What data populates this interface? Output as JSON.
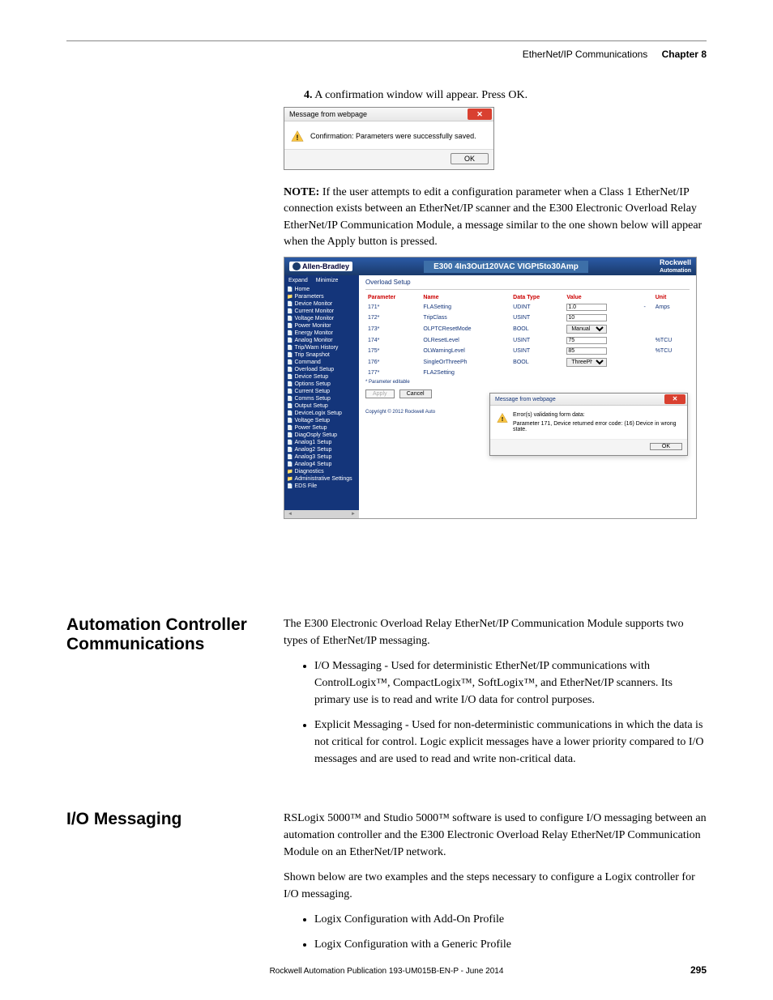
{
  "header": {
    "breadcrumb": "EtherNet/IP Communications",
    "chapter": "Chapter 8"
  },
  "step4": {
    "num": "4.",
    "text": "A confirmation window will appear. Press OK."
  },
  "dialog1": {
    "title": "Message from webpage",
    "message": "Confirmation: Parameters were successfully saved.",
    "ok": "OK"
  },
  "note": {
    "label": "NOTE:",
    "text": " If the user attempts to edit a configuration parameter when a Class 1 EtherNet/IP connection exists between an EtherNet/IP scanner and the E300 Electronic Overload Relay EtherNet/IP Communication Module, a message similar to the one shown below will appear when the Apply button is pressed."
  },
  "app": {
    "brand": "Allen-Bradley",
    "device": "E300 4In3Out120VAC VIGPt5to30Amp",
    "ra1": "Rockwell",
    "ra2": "Automation",
    "sidebar_top": {
      "expand": "Expand",
      "minimize": "Minimize"
    },
    "sidebar": [
      {
        "t": "Home",
        "cls": "page"
      },
      {
        "t": "Parameters",
        "cls": "folder"
      },
      {
        "t": "Device Monitor",
        "cls": "page"
      },
      {
        "t": "Current Monitor",
        "cls": "page"
      },
      {
        "t": "Voltage Monitor",
        "cls": "page"
      },
      {
        "t": "Power Monitor",
        "cls": "page"
      },
      {
        "t": "Energy Monitor",
        "cls": "page"
      },
      {
        "t": "Analog Monitor",
        "cls": "page"
      },
      {
        "t": "Trip/Warn History",
        "cls": "page"
      },
      {
        "t": "Trip Snapshot",
        "cls": "page"
      },
      {
        "t": "Command",
        "cls": "page"
      },
      {
        "t": "Overload Setup",
        "cls": "page"
      },
      {
        "t": "Device Setup",
        "cls": "page"
      },
      {
        "t": "Options Setup",
        "cls": "page"
      },
      {
        "t": "Current Setup",
        "cls": "page"
      },
      {
        "t": "Comms Setup",
        "cls": "page"
      },
      {
        "t": "Output Setup",
        "cls": "page"
      },
      {
        "t": "DeviceLogix Setup",
        "cls": "page"
      },
      {
        "t": "Voltage Setup",
        "cls": "page"
      },
      {
        "t": "Power Setup",
        "cls": "page"
      },
      {
        "t": "DiagOsply Setup",
        "cls": "page"
      },
      {
        "t": "Analog1 Setup",
        "cls": "page"
      },
      {
        "t": "Analog2 Setup",
        "cls": "page"
      },
      {
        "t": "Analog3 Setup",
        "cls": "page"
      },
      {
        "t": "Analog4 Setup",
        "cls": "page"
      },
      {
        "t": "Diagnostics",
        "cls": "folder"
      },
      {
        "t": "Administrative Settings",
        "cls": "folder"
      },
      {
        "t": "EDS File",
        "cls": "page"
      }
    ],
    "main_title": "Overload Setup",
    "table_headers": {
      "parameter": "Parameter",
      "name": "Name",
      "datatype": "Data Type",
      "value": "Value",
      "unit": "Unit"
    },
    "rows": [
      {
        "p": "171*",
        "n": "FLASetting",
        "dt": "UDINT",
        "v": "1.0",
        "widget": "input",
        "u": "Amps",
        "u_prefix": "-"
      },
      {
        "p": "172*",
        "n": "TripClass",
        "dt": "USINT",
        "v": "10",
        "widget": "input",
        "u": ""
      },
      {
        "p": "173*",
        "n": "OLPTCResetMode",
        "dt": "BOOL",
        "v": "Manual",
        "widget": "select",
        "u": ""
      },
      {
        "p": "174*",
        "n": "OLResetLevel",
        "dt": "USINT",
        "v": "75",
        "widget": "input",
        "u": "%TCU"
      },
      {
        "p": "175*",
        "n": "OLWarningLevel",
        "dt": "USINT",
        "v": "85",
        "widget": "input",
        "u": "%TCU"
      },
      {
        "p": "176*",
        "n": "SingleOrThreePh",
        "dt": "BOOL",
        "v": "ThreePhase",
        "widget": "select",
        "u": ""
      },
      {
        "p": "177*",
        "n": "FLA2Setting",
        "dt": "",
        "v": "",
        "widget": "none",
        "u": ""
      }
    ],
    "editable_note": "* Parameter editable",
    "apply_btn": "Apply",
    "cancel_btn": "Cancel",
    "copyright": "Copyright © 2012 Rockwell Auto",
    "inner_dialog": {
      "title": "Message from webpage",
      "line1": "Error(s) validating form data:",
      "line2": "Parameter 171, Device returned error code: (16) Device in wrong state.",
      "ok": "OK"
    }
  },
  "section1": {
    "heading": "Automation Controller Communications",
    "intro": "The E300 Electronic Overload Relay EtherNet/IP Communication Module supports two types of EtherNet/IP messaging.",
    "b1": "I/O Messaging - Used for deterministic EtherNet/IP communications with ControlLogix™, CompactLogix™, SoftLogix™, and EtherNet/IP scanners. Its primary use is to read and write I/O data for control purposes.",
    "b2": "Explicit Messaging - Used for non-deterministic communications in which the data is not critical for control. Logic explicit messages have a lower priority compared to I/O messages and are used to read and write non-critical data."
  },
  "section2": {
    "heading": "I/O Messaging",
    "p1": "RSLogix 5000™ and Studio 5000™ software is used to configure I/O messaging between an automation controller and the E300 Electronic Overload Relay EtherNet/IP Communication Module on an EtherNet/IP network.",
    "p2": "Shown below are two examples and the steps necessary to configure a Logix controller for I/O messaging.",
    "b1": "Logix Configuration with Add-On Profile",
    "b2": "Logix Configuration with a Generic Profile"
  },
  "footer": {
    "pub": "Rockwell Automation Publication 193-UM015B-EN-P - June 2014",
    "page": "295"
  }
}
